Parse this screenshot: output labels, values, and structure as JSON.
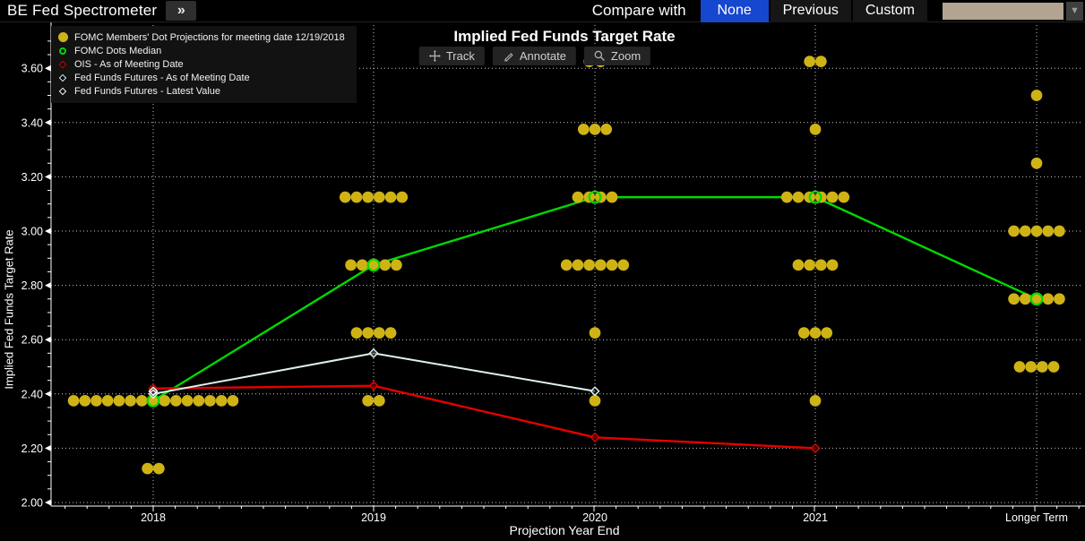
{
  "window": {
    "title": "BE Fed Spectrometer",
    "expand_icon": "»"
  },
  "compare": {
    "label": "Compare with",
    "options": [
      {
        "label": "None",
        "active": true
      },
      {
        "label": "Previous",
        "active": false
      },
      {
        "label": "Custom",
        "active": false
      }
    ],
    "dropdown_value": ""
  },
  "chart": {
    "toolbar": [
      {
        "label": "Track"
      },
      {
        "label": "Annotate"
      },
      {
        "label": "Zoom"
      }
    ]
  },
  "chart_data": {
    "type": "scatter",
    "title": "Implied Fed Funds Target Rate",
    "xlabel": "Projection Year End",
    "ylabel": "Implied Fed Funds Target Rate",
    "ylim": [
      2.0,
      3.7
    ],
    "yticks": [
      2.0,
      2.2,
      2.4,
      2.6,
      2.8,
      3.0,
      3.2,
      3.4,
      3.6
    ],
    "categories": [
      "2018",
      "2019",
      "2020",
      "2021",
      "Longer Term"
    ],
    "grid": "dotted",
    "legend_position": "top-left",
    "series": [
      {
        "name": "FOMC Members' Dot Projections for meeting date 12/19/2018",
        "type": "dots",
        "marker": "filled-circle",
        "color": "#cfb315",
        "points_by_category": {
          "2018": [
            {
              "rate": 2.375,
              "count": 15
            },
            {
              "rate": 2.125,
              "count": 2
            }
          ],
          "2019": [
            {
              "rate": 3.125,
              "count": 6
            },
            {
              "rate": 2.875,
              "count": 5
            },
            {
              "rate": 2.625,
              "count": 4
            },
            {
              "rate": 2.375,
              "count": 2
            }
          ],
          "2020": [
            {
              "rate": 3.625,
              "count": 2
            },
            {
              "rate": 3.375,
              "count": 3
            },
            {
              "rate": 3.125,
              "count": 4
            },
            {
              "rate": 2.875,
              "count": 6
            },
            {
              "rate": 2.625,
              "count": 1
            },
            {
              "rate": 2.375,
              "count": 1
            }
          ],
          "2021": [
            {
              "rate": 3.625,
              "count": 2
            },
            {
              "rate": 3.375,
              "count": 1
            },
            {
              "rate": 3.125,
              "count": 6
            },
            {
              "rate": 2.875,
              "count": 4
            },
            {
              "rate": 2.625,
              "count": 3
            },
            {
              "rate": 2.375,
              "count": 1
            }
          ],
          "Longer Term": [
            {
              "rate": 3.5,
              "count": 1
            },
            {
              "rate": 3.25,
              "count": 1
            },
            {
              "rate": 3.0,
              "count": 5
            },
            {
              "rate": 2.75,
              "count": 5
            },
            {
              "rate": 2.5,
              "count": 4
            }
          ]
        }
      },
      {
        "name": "FOMC Dots Median",
        "type": "line",
        "marker": "open-circle",
        "color": "#00d900",
        "values": [
          2.375,
          2.875,
          3.125,
          3.125,
          2.75
        ]
      },
      {
        "name": "OIS - As of Meeting Date",
        "type": "line",
        "marker": "open-diamond",
        "color": "#e60000",
        "values": [
          2.42,
          2.43,
          2.24,
          2.2,
          null
        ]
      },
      {
        "name": "Fed Funds Futures - As of Meeting Date",
        "type": "line",
        "marker": "open-diamond",
        "color": "#dff1f1",
        "values": [
          2.4,
          2.55,
          2.41,
          null,
          null
        ]
      },
      {
        "name": "Fed Funds Futures - Latest Value",
        "type": "marker",
        "marker": "open-diamond",
        "color": "#ffffff",
        "points": [
          {
            "category": "2018",
            "rate": 2.41
          }
        ]
      }
    ]
  }
}
